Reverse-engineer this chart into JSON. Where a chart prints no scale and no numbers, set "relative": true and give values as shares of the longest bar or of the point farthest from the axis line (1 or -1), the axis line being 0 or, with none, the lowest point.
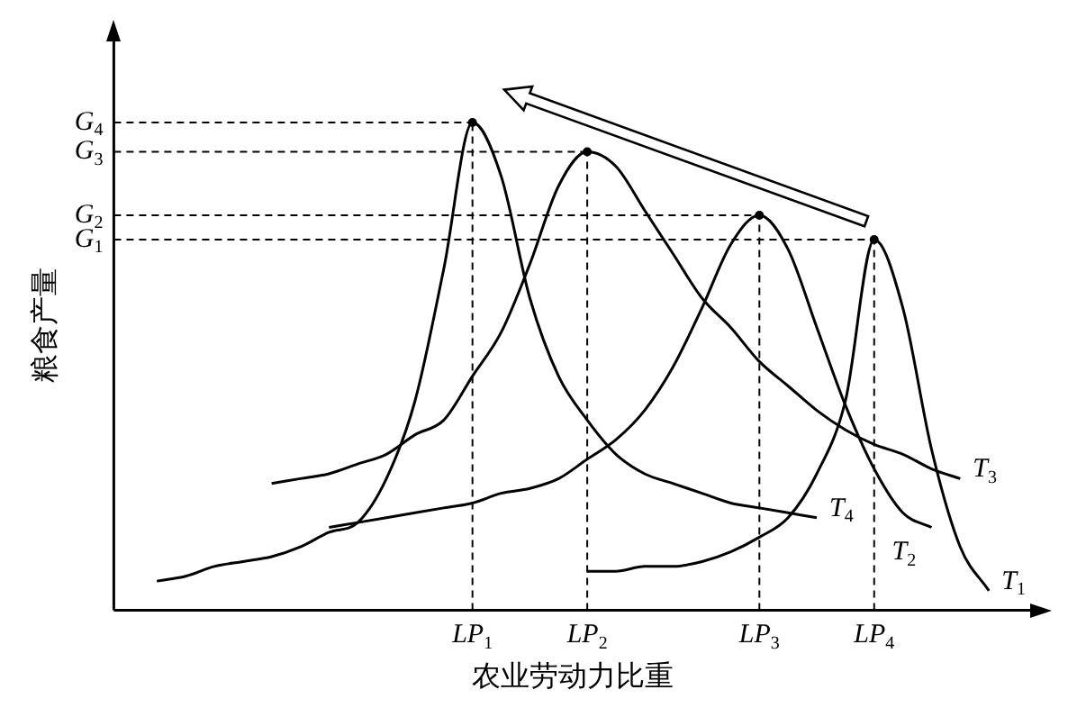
{
  "chart_data": {
    "type": "line",
    "relative": true,
    "xlabel": "农业劳动力比重",
    "ylabel": "粮食产量",
    "categories": [
      null,
      null,
      null,
      null,
      null,
      null,
      null,
      null,
      null,
      null,
      null,
      null,
      "LP$_{1}$",
      null,
      null,
      null,
      "LP$_{2}$",
      null,
      null,
      null,
      null,
      null,
      "LP$_{3}$",
      null,
      null,
      null,
      "LP$_{4}$",
      null,
      null,
      null,
      null,
      null
    ],
    "ref_lines": [
      {
        "axis": "y",
        "value": 0.76,
        "label": "G$_{1}$",
        "line_style": "dashed"
      },
      {
        "axis": "y",
        "value": 0.81,
        "label": "G$_{2}$",
        "line_style": "dashed"
      },
      {
        "axis": "y",
        "value": 0.94,
        "label": "G$_{3}$",
        "line_style": "dashed"
      },
      {
        "axis": "y",
        "value": 1,
        "label": "G$_{4}$",
        "line_style": "dashed"
      },
      {
        "axis": "x",
        "value": "LP$_{1}$",
        "line_style": "dashed"
      },
      {
        "axis": "x",
        "value": "LP$_{2}$",
        "line_style": "dashed"
      },
      {
        "axis": "x",
        "value": "LP$_{3}$",
        "line_style": "dashed"
      },
      {
        "axis": "x",
        "value": "LP$_{4}$",
        "line_style": "dashed"
      }
    ],
    "grid": false,
    "legend": false,
    "marker": "none",
    "line_style": "solid",
    "series": [
      {
        "name": "T$_{4}$",
        "color": "#000000",
        "values": [
          null,
          0.06,
          0.07,
          0.09,
          0.1,
          0.11,
          0.13,
          0.16,
          0.18,
          0.27,
          0.43,
          0.7,
          1,
          0.89,
          0.64,
          0.48,
          0.39,
          0.32,
          0.28,
          0.26,
          0.24,
          0.22,
          0.21,
          0.2,
          0.19,
          null,
          null,
          null,
          null,
          null,
          null,
          null
        ]
      },
      {
        "name": "T$_{3}$",
        "color": "#000000",
        "values": [
          null,
          null,
          null,
          null,
          null,
          0.26,
          0.27,
          0.28,
          0.3,
          0.32,
          0.36,
          0.39,
          0.48,
          0.57,
          0.71,
          0.87,
          0.94,
          0.91,
          0.82,
          0.73,
          0.64,
          0.58,
          0.51,
          0.46,
          0.41,
          0.37,
          0.34,
          0.32,
          0.29,
          0.27,
          null,
          null
        ]
      },
      {
        "name": "T$_{2}$",
        "color": "#000000",
        "values": [
          null,
          null,
          null,
          null,
          null,
          null,
          null,
          0.17,
          0.18,
          0.19,
          0.2,
          0.21,
          0.22,
          0.24,
          0.25,
          0.27,
          0.31,
          0.35,
          0.41,
          0.5,
          0.62,
          0.75,
          0.81,
          0.74,
          0.58,
          0.42,
          0.29,
          0.2,
          0.17,
          null,
          null,
          null
        ]
      },
      {
        "name": "T$_{1}$",
        "color": "#000000",
        "values": [
          null,
          null,
          null,
          null,
          null,
          null,
          null,
          null,
          null,
          null,
          null,
          null,
          null,
          null,
          null,
          null,
          0.08,
          0.08,
          0.09,
          0.09,
          0.1,
          0.12,
          0.15,
          0.19,
          0.28,
          0.43,
          0.76,
          0.62,
          0.33,
          0.13,
          0.04,
          null
        ]
      }
    ]
  }
}
